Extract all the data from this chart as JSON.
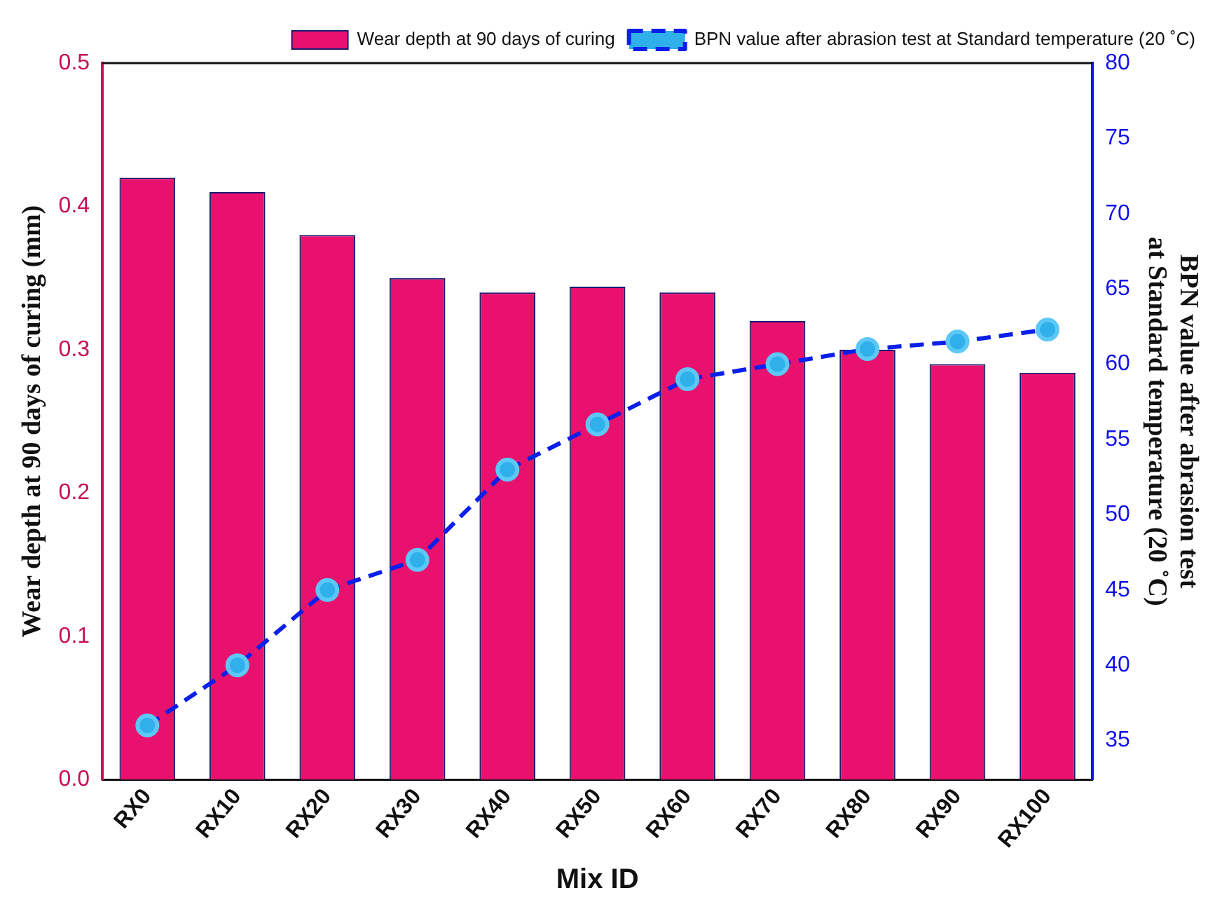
{
  "chart_data": {
    "type": "bar",
    "xlabel": "Mix ID",
    "ylabel": "Wear depth at 90 days of curing (mm)",
    "y2label": "BPN value after abrasion test\nat Standard temperature (20 ˚C)",
    "categories": [
      "RX0",
      "RX10",
      "RX20",
      "RX30",
      "RX40",
      "RX50",
      "RX60",
      "RX70",
      "RX80",
      "RX90",
      "RX100"
    ],
    "series": [
      {
        "name": "Wear depth at 90 days of curing",
        "color": "#e8126e",
        "values": [
          0.42,
          0.41,
          0.38,
          0.35,
          0.34,
          0.344,
          0.34,
          0.32,
          0.3,
          0.29,
          0.284
        ]
      },
      {
        "name": "BPN value after abrasion test at Standard temperature (20 ˚C)",
        "type": "line",
        "axis": "y2",
        "color": "#0a1fe8",
        "values": [
          36,
          40,
          45,
          47,
          53,
          56,
          59,
          60,
          61,
          61.5,
          62.3
        ]
      }
    ],
    "ylim": [
      0,
      0.5
    ],
    "yticks": [
      {
        "value": 0,
        "label": "0.0"
      },
      {
        "value": 0.1,
        "label": "0.1"
      },
      {
        "value": 0.2,
        "label": "0.2"
      },
      {
        "value": 0.3,
        "label": "0.3"
      },
      {
        "value": 0.4,
        "label": "0.4"
      },
      {
        "value": 0.5,
        "label": "0.5"
      }
    ],
    "y2lim": [
      32.4,
      80
    ],
    "y2ticks": [
      35,
      40,
      45,
      50,
      55,
      60,
      65,
      70,
      75,
      80
    ],
    "grid": false,
    "legend": "top",
    "marker": "circle",
    "line_style": "dashed"
  }
}
